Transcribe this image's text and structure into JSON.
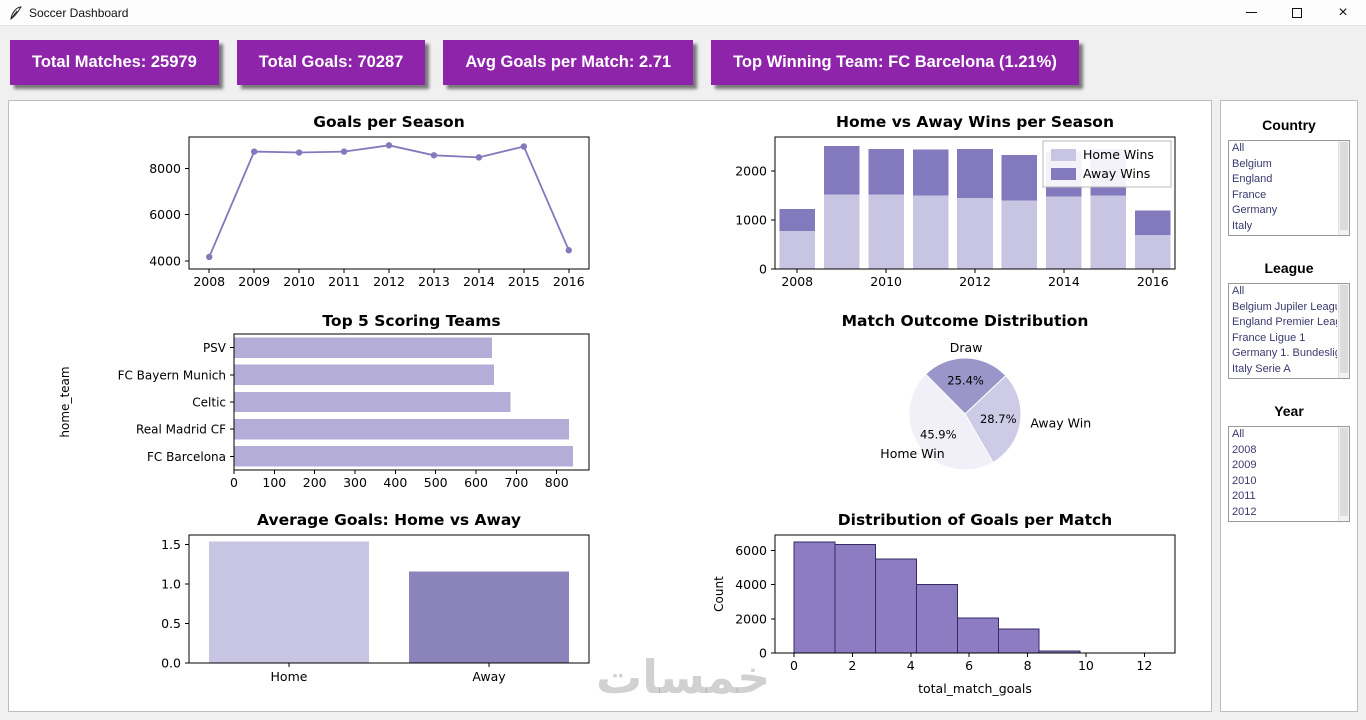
{
  "window": {
    "title": "Soccer Dashboard"
  },
  "stats": [
    "Total Matches: 25979",
    "Total Goals: 70287",
    "Avg Goals per Match: 2.71",
    "Top Winning Team: FC Barcelona (1.21%)"
  ],
  "colors": {
    "card_bg": "#8e24aa",
    "card_text": "#ffffff",
    "line_series": "#8379bd",
    "home_wins": "#c8c5e3",
    "away_wins": "#8379bd",
    "hbar": "#b3add7",
    "hist_fill": "#8e7cc3",
    "hist_edge": "#342d63"
  },
  "chart_data": [
    {
      "id": "goals_per_season",
      "type": "line",
      "title": "Goals per Season",
      "x": [
        2008,
        2009,
        2010,
        2011,
        2012,
        2013,
        2014,
        2015,
        2016
      ],
      "y": [
        4170,
        8720,
        8680,
        8720,
        8990,
        8560,
        8470,
        8940,
        4460
      ],
      "yticks": [
        4000,
        6000,
        8000
      ],
      "ylim": [
        3650,
        9350
      ],
      "grid": false,
      "color": "#8379bd"
    },
    {
      "id": "wins_per_season",
      "type": "stacked_bar",
      "title": "Home vs Away Wins per Season",
      "categories": [
        2008,
        2009,
        2010,
        2011,
        2012,
        2013,
        2014,
        2015,
        2016
      ],
      "series": [
        {
          "name": "Home Wins",
          "color": "#c8c5e3",
          "values": [
            780,
            1520,
            1520,
            1500,
            1450,
            1400,
            1480,
            1500,
            700
          ]
        },
        {
          "name": "Away Wins",
          "color": "#8379bd",
          "values": [
            450,
            1000,
            930,
            940,
            1000,
            930,
            920,
            950,
            500
          ]
        }
      ],
      "xticks": [
        2008,
        2010,
        2012,
        2014,
        2016
      ],
      "yticks": [
        0,
        1000,
        2000
      ],
      "ylim": [
        0,
        2700
      ],
      "legend_position": "upper right"
    },
    {
      "id": "top_teams",
      "type": "hbar",
      "title": "Top 5 Scoring Teams",
      "ylabel": "home_team",
      "categories": [
        "PSV",
        "FC Bayern Munich",
        "Celtic",
        "Real Madrid CF",
        "FC Barcelona"
      ],
      "values": [
        640,
        645,
        685,
        830,
        840
      ],
      "xticks": [
        0,
        100,
        200,
        300,
        400,
        500,
        600,
        700,
        800
      ],
      "xlim": [
        0,
        880
      ],
      "color": "#b3add7"
    },
    {
      "id": "outcome_pie",
      "type": "pie",
      "title": "Match Outcome Distribution",
      "start_angle": -60,
      "direction": "counterclockwise",
      "slices": [
        {
          "label": "Away Win",
          "pct": 28.7,
          "color": "#cdcbe5"
        },
        {
          "label": "Draw",
          "pct": 25.4,
          "color": "#9b96c9"
        },
        {
          "label": "Home Win",
          "pct": 45.9,
          "color": "#f1f0f8"
        }
      ]
    },
    {
      "id": "avg_goals",
      "type": "bar",
      "title": "Average Goals: Home vs Away",
      "categories": [
        "Home",
        "Away"
      ],
      "values": [
        1.54,
        1.16
      ],
      "colors": [
        "#c8c5e3",
        "#8b84bb"
      ],
      "ytick_labels": [
        "0.0",
        "0.5",
        "1.0",
        "1.5"
      ],
      "ylim": [
        0,
        1.62
      ]
    },
    {
      "id": "goals_distribution",
      "type": "histogram",
      "title": "Distribution of Goals per Match",
      "xlabel": "total_match_goals",
      "ylabel": "Count",
      "bin_start": 0,
      "bin_width": 1.4,
      "counts": [
        6500,
        6350,
        5500,
        4000,
        2050,
        1400,
        120
      ],
      "xticks": [
        0,
        2,
        4,
        6,
        8,
        10,
        12
      ],
      "xlim": [
        -0.65,
        13.05
      ],
      "yticks": [
        0,
        2000,
        4000,
        6000
      ],
      "ylim": [
        0,
        6900
      ],
      "color": "#8e7cc3",
      "edge_color": "#342d63"
    }
  ],
  "sidebar": {
    "sections": [
      {
        "id": "country",
        "title": "Country",
        "items": [
          "All",
          "Belgium",
          "England",
          "France",
          "Germany",
          "Italy"
        ]
      },
      {
        "id": "league",
        "title": "League",
        "items": [
          "All",
          "Belgium Jupiler League",
          "England Premier League",
          "France Ligue 1",
          "Germany 1. Bundesliga",
          "Italy Serie A"
        ]
      },
      {
        "id": "year",
        "title": "Year",
        "items": [
          "All",
          "2008",
          "2009",
          "2010",
          "2011",
          "2012"
        ]
      }
    ]
  },
  "watermark": "خمسات"
}
